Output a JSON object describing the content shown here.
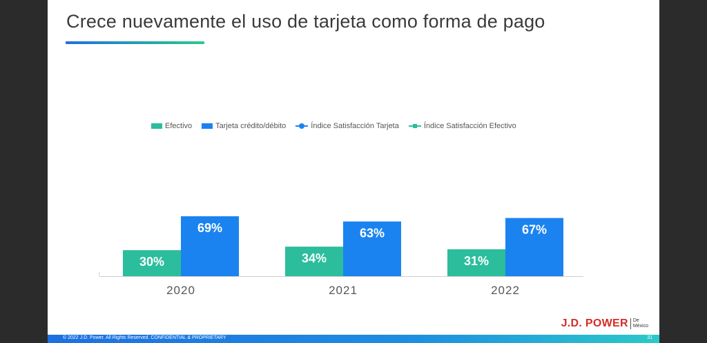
{
  "slide": {
    "title": "Crece nuevamente el uso de tarjeta como forma de pago",
    "footer_text": "© 2022 J.D. Power. All Rights Reserved. CONFIDENTIAL & PROPRIETARY",
    "page_number": "31",
    "logo": {
      "main": "J.D. POWER",
      "sub_line1": "De",
      "sub_line2": "México"
    }
  },
  "legend": {
    "efectivo": "Efectivo",
    "tarjeta": "Tarjeta crédito/débito",
    "indice_tarjeta": "Índice Satisfacción Tarjeta",
    "indice_efectivo": "Índice Satisfacción Efectivo"
  },
  "colors": {
    "efectivo": "#2bbd9c",
    "tarjeta": "#1a83f0",
    "indice_tarjeta": "#1a83f0",
    "indice_efectivo": "#2bbd9c",
    "title": "#3a3a3a"
  },
  "chart_data": {
    "type": "bar",
    "categories": [
      "2020",
      "2021",
      "2022"
    ],
    "series": [
      {
        "name": "Efectivo",
        "values": [
          30,
          34,
          31
        ],
        "labels": [
          "30%",
          "34%",
          "31%"
        ]
      },
      {
        "name": "Tarjeta crédito/débito",
        "values": [
          69,
          63,
          67
        ],
        "labels": [
          "69%",
          "63%",
          "67%"
        ]
      }
    ],
    "ylim": [
      0,
      100
    ],
    "grid": false,
    "legend": "top"
  }
}
